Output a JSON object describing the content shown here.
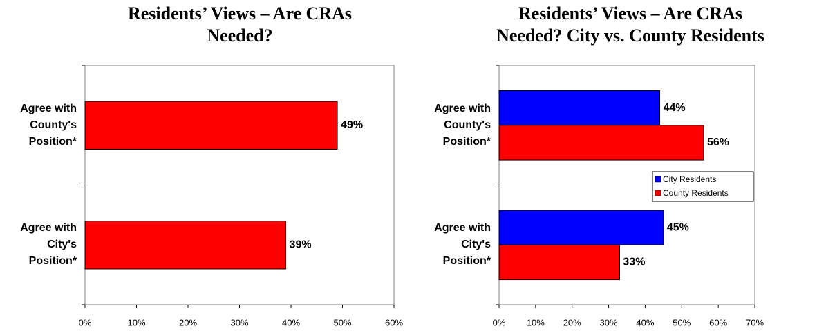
{
  "chart_data": [
    {
      "type": "barh",
      "title": "Residents’ Views – Are CRAs\nNeeded?",
      "categories": [
        "Agree with\nCounty's\nPosition*",
        "Agree with\nCity's\nPosition*"
      ],
      "series": [
        {
          "name": null,
          "color": "#ff0000",
          "values": [
            49,
            39
          ],
          "value_labels": [
            "49%",
            "39%"
          ]
        }
      ],
      "xlim": [
        0,
        60
      ],
      "xticks": [
        {
          "value": 0,
          "label": "0%"
        },
        {
          "value": 10,
          "label": "10%"
        },
        {
          "value": 20,
          "label": "20%"
        },
        {
          "value": 30,
          "label": "30%"
        },
        {
          "value": 40,
          "label": "40%"
        },
        {
          "value": 50,
          "label": "50%"
        },
        {
          "value": 60,
          "label": "60%"
        }
      ],
      "grid": false
    },
    {
      "type": "barh",
      "title": "Residents’ Views – Are CRAs\nNeeded?  City vs. County Residents",
      "categories": [
        "Agree with\nCounty's\nPosition*",
        "Agree with\nCity's\nPosition*"
      ],
      "series": [
        {
          "name": "City Residents",
          "color": "#0000ff",
          "values": [
            44,
            45
          ],
          "value_labels": [
            "44%",
            "45%"
          ]
        },
        {
          "name": "County Residents",
          "color": "#ff0000",
          "values": [
            56,
            33
          ],
          "value_labels": [
            "56%",
            "33%"
          ]
        }
      ],
      "xlim": [
        0,
        70
      ],
      "xticks": [
        {
          "value": 0,
          "label": "0%"
        },
        {
          "value": 10,
          "label": "10%"
        },
        {
          "value": 20,
          "label": "20%"
        },
        {
          "value": 30,
          "label": "30%"
        },
        {
          "value": 40,
          "label": "40%"
        },
        {
          "value": 50,
          "label": "50%"
        },
        {
          "value": 60,
          "label": "60%"
        },
        {
          "value": 70,
          "label": "70%"
        }
      ],
      "legend": "right",
      "grid": false
    }
  ]
}
